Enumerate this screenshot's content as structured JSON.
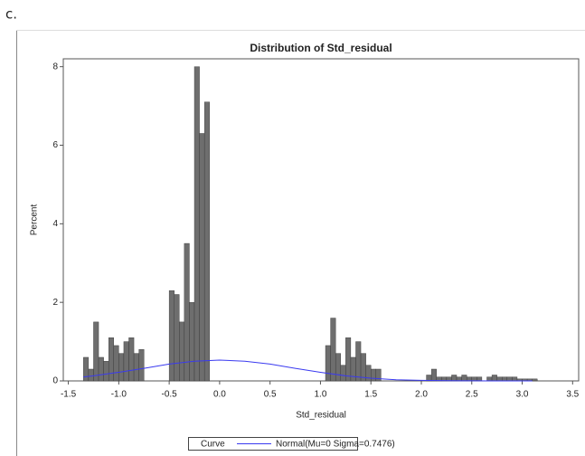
{
  "panel_label": "c.",
  "chart_data": {
    "type": "histogram",
    "title": "Distribution of Std_residual",
    "x_label": "Std_residual",
    "y_label": "Percent",
    "color": "#6e6e6e",
    "bins": [
      -1.35,
      -1.3,
      -1.25,
      -1.2,
      -1.15,
      -1.1,
      -1.05,
      -1.0,
      -0.95,
      -0.9,
      -0.85,
      -0.8,
      -0.75,
      -0.7,
      -0.65,
      -0.6,
      -0.55,
      -0.5,
      -0.45,
      -0.4,
      -0.35,
      -0.3,
      -0.25,
      -0.2,
      -0.15,
      -0.1,
      -0.05,
      0.0,
      0.05,
      0.1,
      0.15,
      0.2,
      0.25,
      0.3,
      0.35,
      0.4,
      0.45,
      0.5,
      0.55,
      0.6,
      0.65,
      0.7,
      0.75,
      0.8,
      0.85,
      0.9,
      0.95,
      1.0,
      1.05,
      1.1,
      1.15,
      1.2,
      1.25,
      1.3,
      1.35,
      1.4,
      1.45,
      1.5,
      1.55,
      1.6,
      1.65,
      1.7,
      1.75,
      1.8,
      1.85,
      1.9,
      1.95,
      2.0,
      2.05,
      2.1,
      2.15,
      2.2,
      2.25,
      2.3,
      2.35,
      2.4,
      2.45,
      2.5,
      2.55,
      2.6,
      2.65,
      2.7,
      2.75,
      2.8,
      2.85,
      2.9,
      2.95,
      3.0,
      3.05,
      3.1,
      3.15
    ],
    "values": [
      0.6,
      0.3,
      1.5,
      0.6,
      0.5,
      1.1,
      0.9,
      0.7,
      1.0,
      1.1,
      0.7,
      0.8,
      0,
      0,
      0,
      0,
      0,
      2.3,
      2.2,
      1.5,
      3.5,
      2.0,
      8.0,
      6.3,
      7.1,
      0,
      0,
      0,
      0,
      0,
      0,
      0,
      0,
      0,
      0,
      0,
      0,
      0,
      0,
      0,
      0,
      0,
      0,
      0,
      0,
      0,
      0,
      0,
      0.9,
      1.6,
      0.7,
      0.4,
      1.1,
      0.6,
      1.0,
      0.7,
      0.4,
      0.3,
      0.3,
      0,
      0,
      0,
      0,
      0,
      0,
      0,
      0,
      0,
      0.15,
      0.3,
      0.1,
      0.1,
      0.1,
      0.15,
      0.1,
      0.15,
      0.1,
      0.1,
      0.1,
      0,
      0.1,
      0.15,
      0.1,
      0.1,
      0.1,
      0.1,
      0.05,
      0.05,
      0.05,
      0.05
    ],
    "curve": {
      "name": "Normal(Mu=0 Sigma=0.7476)",
      "color": "#3a3af0",
      "x": [
        -1.35,
        -1.25,
        -1.0,
        -0.75,
        -0.5,
        -0.25,
        0,
        0.25,
        0.5,
        0.75,
        1.0,
        1.25,
        1.5,
        1.75,
        2.0,
        2.25,
        2.5,
        2.75,
        3.0,
        3.1
      ],
      "values": [
        0.1,
        0.13,
        0.22,
        0.32,
        0.43,
        0.5,
        0.53,
        0.5,
        0.43,
        0.32,
        0.22,
        0.13,
        0.07,
        0.03,
        0.015,
        0.006,
        0.002,
        0.0005,
        0,
        0
      ]
    },
    "legend_title": "Curve",
    "xlim": [
      -1.55,
      3.56
    ],
    "ylim": [
      0,
      8.2
    ],
    "xticks": [
      -1.5,
      {
        "value": -1,
        "label": "-1.0"
      },
      -0.5,
      {
        "value": 0,
        "label": "0.0"
      },
      0.5,
      {
        "value": 1,
        "label": "1.0"
      },
      1.5,
      {
        "value": 2,
        "label": "2.0"
      },
      2.5,
      {
        "value": 3,
        "label": "3.0"
      },
      3.5
    ],
    "yticks": [
      0,
      2,
      4,
      6,
      8
    ]
  }
}
